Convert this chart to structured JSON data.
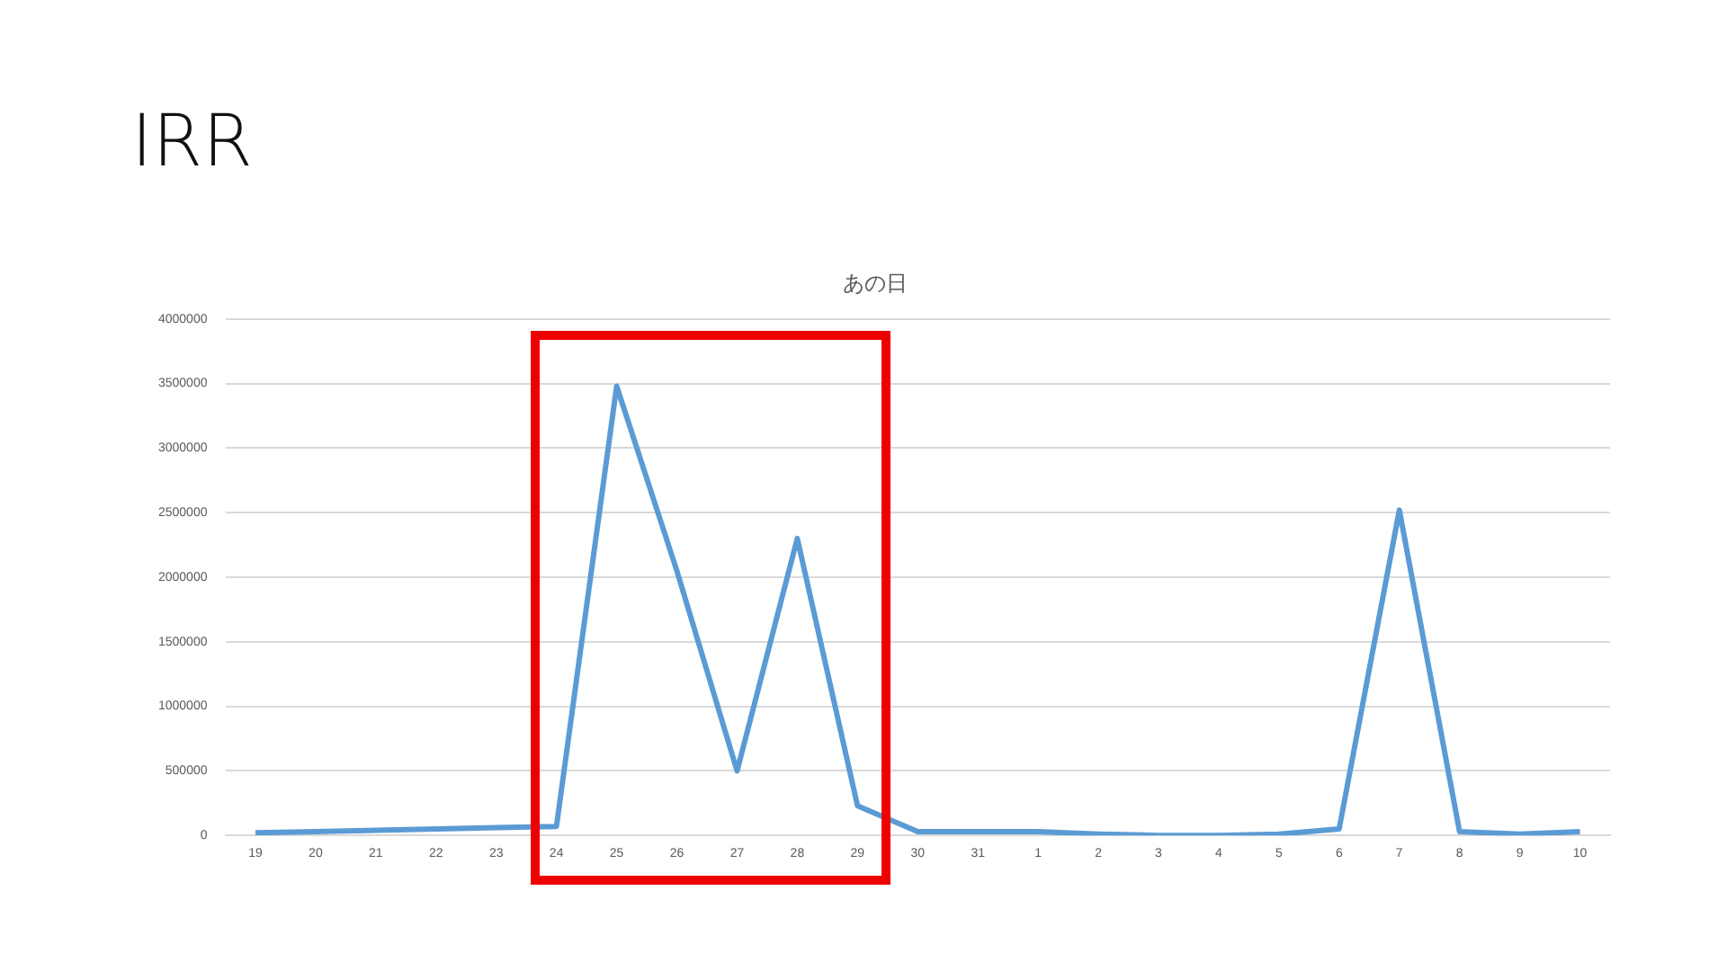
{
  "chart_data": {
    "type": "line",
    "title": "IRR",
    "subtitle": "あの日",
    "categories": [
      "19",
      "20",
      "21",
      "22",
      "23",
      "24",
      "25",
      "26",
      "27",
      "28",
      "29",
      "30",
      "31",
      "1",
      "2",
      "3",
      "4",
      "5",
      "6",
      "7",
      "8",
      "9",
      "10"
    ],
    "series": [
      {
        "color": "#5b9bd5",
        "values": [
          20000,
          30000,
          40000,
          50000,
          60000,
          70000,
          3480000,
          2050000,
          500000,
          2300000,
          230000,
          30000,
          30000,
          30000,
          10000,
          0,
          0,
          10000,
          50000,
          2520000,
          30000,
          10000,
          30000
        ]
      }
    ],
    "ylim": [
      0,
      4000000
    ],
    "yticks": [
      0,
      500000,
      1000000,
      1500000,
      2000000,
      2500000,
      3000000,
      3500000,
      4000000
    ],
    "grid": "y",
    "legend": false,
    "marker": "none",
    "line_style": "solid"
  }
}
